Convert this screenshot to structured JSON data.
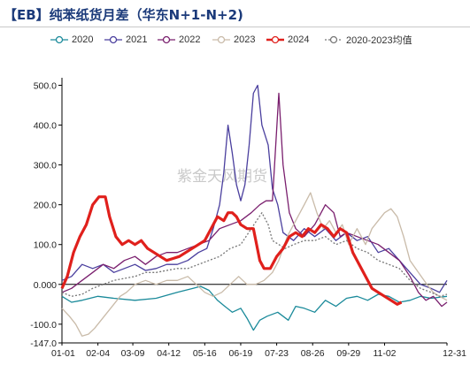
{
  "title": "【EB】纯苯纸货月差（华东N+1-N+2)",
  "watermark": "紫金天风期货",
  "chart_data": {
    "type": "line",
    "ylim": [
      -147,
      510
    ],
    "yticks": [
      "500.0",
      "400.0",
      "300.0",
      "200.0",
      "100.0",
      "0.000",
      "-100.0",
      "-147.0"
    ],
    "ytick_values": [
      500,
      400,
      300,
      200,
      100,
      0,
      -100,
      -147
    ],
    "xtick_labels": [
      "01-01",
      "02-04",
      "03-09",
      "04-12",
      "05-16",
      "06-19",
      "07-23",
      "08-26",
      "09-29",
      "11-02",
      "12-31"
    ],
    "xtick_days": [
      1,
      35,
      68,
      102,
      136,
      170,
      204,
      238,
      272,
      306,
      365
    ],
    "xlim": [
      1,
      365
    ],
    "grid": false,
    "legend_position": "top",
    "series": [
      {
        "name": "2020",
        "color": "#1a8a9a",
        "marker": "circle",
        "points": [
          [
            1,
            -30
          ],
          [
            10,
            -45
          ],
          [
            20,
            -40
          ],
          [
            35,
            -30
          ],
          [
            50,
            -35
          ],
          [
            70,
            -40
          ],
          [
            90,
            -35
          ],
          [
            110,
            -20
          ],
          [
            125,
            -10
          ],
          [
            132,
            -5
          ],
          [
            140,
            -15
          ],
          [
            148,
            -40
          ],
          [
            155,
            -55
          ],
          [
            162,
            -70
          ],
          [
            170,
            -60
          ],
          [
            176,
            -85
          ],
          [
            182,
            -115
          ],
          [
            188,
            -90
          ],
          [
            195,
            -80
          ],
          [
            205,
            -70
          ],
          [
            215,
            -90
          ],
          [
            222,
            -55
          ],
          [
            230,
            -60
          ],
          [
            240,
            -70
          ],
          [
            250,
            -40
          ],
          [
            260,
            -55
          ],
          [
            270,
            -35
          ],
          [
            280,
            -30
          ],
          [
            290,
            -40
          ],
          [
            300,
            -25
          ],
          [
            310,
            -30
          ],
          [
            320,
            -45
          ],
          [
            330,
            -40
          ],
          [
            340,
            -30
          ],
          [
            350,
            -35
          ],
          [
            365,
            -30
          ]
        ]
      },
      {
        "name": "2021",
        "color": "#4a3f9e",
        "marker": "circle",
        "points": [
          [
            1,
            10
          ],
          [
            10,
            20
          ],
          [
            20,
            50
          ],
          [
            30,
            40
          ],
          [
            40,
            50
          ],
          [
            50,
            30
          ],
          [
            60,
            40
          ],
          [
            70,
            50
          ],
          [
            80,
            35
          ],
          [
            90,
            40
          ],
          [
            100,
            50
          ],
          [
            110,
            50
          ],
          [
            120,
            60
          ],
          [
            130,
            80
          ],
          [
            138,
            90
          ],
          [
            144,
            140
          ],
          [
            150,
            200
          ],
          [
            154,
            280
          ],
          [
            158,
            400
          ],
          [
            162,
            330
          ],
          [
            166,
            250
          ],
          [
            170,
            210
          ],
          [
            174,
            250
          ],
          [
            178,
            350
          ],
          [
            182,
            480
          ],
          [
            186,
            500
          ],
          [
            190,
            400
          ],
          [
            196,
            350
          ],
          [
            200,
            240
          ],
          [
            205,
            200
          ],
          [
            210,
            130
          ],
          [
            220,
            110
          ],
          [
            230,
            140
          ],
          [
            240,
            120
          ],
          [
            250,
            140
          ],
          [
            260,
            110
          ],
          [
            270,
            130
          ],
          [
            280,
            110
          ],
          [
            290,
            120
          ],
          [
            300,
            80
          ],
          [
            310,
            90
          ],
          [
            320,
            60
          ],
          [
            330,
            30
          ],
          [
            340,
            0
          ],
          [
            350,
            -10
          ],
          [
            358,
            -20
          ],
          [
            365,
            10
          ]
        ]
      },
      {
        "name": "2022",
        "color": "#7a1f6e",
        "marker": "circle",
        "points": [
          [
            1,
            -20
          ],
          [
            10,
            -10
          ],
          [
            20,
            10
          ],
          [
            30,
            30
          ],
          [
            40,
            50
          ],
          [
            50,
            40
          ],
          [
            60,
            60
          ],
          [
            70,
            70
          ],
          [
            80,
            50
          ],
          [
            90,
            70
          ],
          [
            100,
            80
          ],
          [
            110,
            80
          ],
          [
            120,
            90
          ],
          [
            130,
            100
          ],
          [
            140,
            110
          ],
          [
            150,
            140
          ],
          [
            160,
            150
          ],
          [
            170,
            160
          ],
          [
            180,
            180
          ],
          [
            188,
            200
          ],
          [
            194,
            210
          ],
          [
            200,
            210
          ],
          [
            206,
            480
          ],
          [
            210,
            300
          ],
          [
            216,
            180
          ],
          [
            222,
            140
          ],
          [
            230,
            120
          ],
          [
            240,
            150
          ],
          [
            250,
            200
          ],
          [
            258,
            180
          ],
          [
            264,
            120
          ],
          [
            270,
            130
          ],
          [
            280,
            120
          ],
          [
            290,
            110
          ],
          [
            300,
            100
          ],
          [
            310,
            80
          ],
          [
            320,
            60
          ],
          [
            330,
            20
          ],
          [
            338,
            -20
          ],
          [
            345,
            -40
          ],
          [
            352,
            -30
          ],
          [
            360,
            -55
          ],
          [
            365,
            -45
          ]
        ]
      },
      {
        "name": "2023",
        "color": "#c9bba9",
        "marker": "circle",
        "points": [
          [
            1,
            -60
          ],
          [
            8,
            -80
          ],
          [
            14,
            -100
          ],
          [
            20,
            -130
          ],
          [
            26,
            -125
          ],
          [
            32,
            -110
          ],
          [
            38,
            -90
          ],
          [
            44,
            -70
          ],
          [
            50,
            -50
          ],
          [
            56,
            -30
          ],
          [
            62,
            -20
          ],
          [
            70,
            0
          ],
          [
            80,
            10
          ],
          [
            90,
            0
          ],
          [
            100,
            10
          ],
          [
            110,
            10
          ],
          [
            120,
            20
          ],
          [
            128,
            0
          ],
          [
            136,
            -20
          ],
          [
            144,
            -30
          ],
          [
            152,
            -20
          ],
          [
            160,
            0
          ],
          [
            168,
            20
          ],
          [
            176,
            0
          ],
          [
            184,
            0
          ],
          [
            192,
            10
          ],
          [
            200,
            30
          ],
          [
            206,
            60
          ],
          [
            214,
            120
          ],
          [
            222,
            160
          ],
          [
            230,
            200
          ],
          [
            236,
            230
          ],
          [
            242,
            180
          ],
          [
            248,
            140
          ],
          [
            254,
            160
          ],
          [
            260,
            130
          ],
          [
            266,
            150
          ],
          [
            272,
            100
          ],
          [
            280,
            140
          ],
          [
            288,
            100
          ],
          [
            294,
            140
          ],
          [
            300,
            160
          ],
          [
            306,
            180
          ],
          [
            312,
            190
          ],
          [
            318,
            170
          ],
          [
            324,
            120
          ],
          [
            330,
            60
          ],
          [
            338,
            30
          ],
          [
            346,
            0
          ],
          [
            352,
            -20
          ],
          [
            358,
            -30
          ],
          [
            365,
            -40
          ]
        ]
      },
      {
        "name": "2024",
        "color": "#e0201c",
        "marker": "circle",
        "bold": true,
        "points": [
          [
            1,
            -10
          ],
          [
            6,
            20
          ],
          [
            12,
            80
          ],
          [
            18,
            120
          ],
          [
            24,
            150
          ],
          [
            30,
            200
          ],
          [
            36,
            220
          ],
          [
            42,
            220
          ],
          [
            46,
            170
          ],
          [
            52,
            120
          ],
          [
            58,
            100
          ],
          [
            64,
            110
          ],
          [
            70,
            100
          ],
          [
            76,
            110
          ],
          [
            82,
            90
          ],
          [
            88,
            80
          ],
          [
            94,
            70
          ],
          [
            100,
            60
          ],
          [
            106,
            65
          ],
          [
            112,
            70
          ],
          [
            118,
            80
          ],
          [
            124,
            90
          ],
          [
            130,
            100
          ],
          [
            136,
            110
          ],
          [
            142,
            140
          ],
          [
            148,
            170
          ],
          [
            154,
            160
          ],
          [
            158,
            180
          ],
          [
            162,
            180
          ],
          [
            166,
            170
          ],
          [
            170,
            150
          ],
          [
            176,
            140
          ],
          [
            182,
            140
          ],
          [
            188,
            60
          ],
          [
            192,
            40
          ],
          [
            198,
            40
          ],
          [
            204,
            70
          ],
          [
            210,
            90
          ],
          [
            216,
            120
          ],
          [
            222,
            130
          ],
          [
            228,
            120
          ],
          [
            234,
            140
          ],
          [
            240,
            130
          ],
          [
            246,
            150
          ],
          [
            252,
            140
          ],
          [
            258,
            120
          ],
          [
            264,
            140
          ],
          [
            270,
            130
          ],
          [
            276,
            80
          ],
          [
            282,
            50
          ],
          [
            288,
            20
          ],
          [
            294,
            -10
          ],
          [
            300,
            -20
          ],
          [
            306,
            -30
          ],
          [
            312,
            -40
          ],
          [
            318,
            -50
          ],
          [
            322,
            -45
          ]
        ]
      },
      {
        "name": "2020-2023均值",
        "color": "#777777",
        "marker": "circle",
        "dashed": true,
        "points": [
          [
            1,
            -20
          ],
          [
            10,
            -30
          ],
          [
            20,
            -25
          ],
          [
            30,
            -10
          ],
          [
            40,
            0
          ],
          [
            50,
            10
          ],
          [
            60,
            15
          ],
          [
            70,
            20
          ],
          [
            80,
            30
          ],
          [
            90,
            30
          ],
          [
            100,
            35
          ],
          [
            110,
            40
          ],
          [
            120,
            40
          ],
          [
            130,
            50
          ],
          [
            140,
            60
          ],
          [
            150,
            70
          ],
          [
            160,
            90
          ],
          [
            170,
            100
          ],
          [
            180,
            140
          ],
          [
            190,
            180
          ],
          [
            196,
            150
          ],
          [
            200,
            110
          ],
          [
            206,
            100
          ],
          [
            212,
            90
          ],
          [
            220,
            100
          ],
          [
            230,
            110
          ],
          [
            240,
            110
          ],
          [
            250,
            120
          ],
          [
            260,
            100
          ],
          [
            270,
            110
          ],
          [
            280,
            90
          ],
          [
            290,
            80
          ],
          [
            300,
            60
          ],
          [
            310,
            50
          ],
          [
            320,
            40
          ],
          [
            330,
            10
          ],
          [
            340,
            -10
          ],
          [
            350,
            -20
          ],
          [
            358,
            -30
          ],
          [
            365,
            -25
          ]
        ]
      }
    ]
  }
}
